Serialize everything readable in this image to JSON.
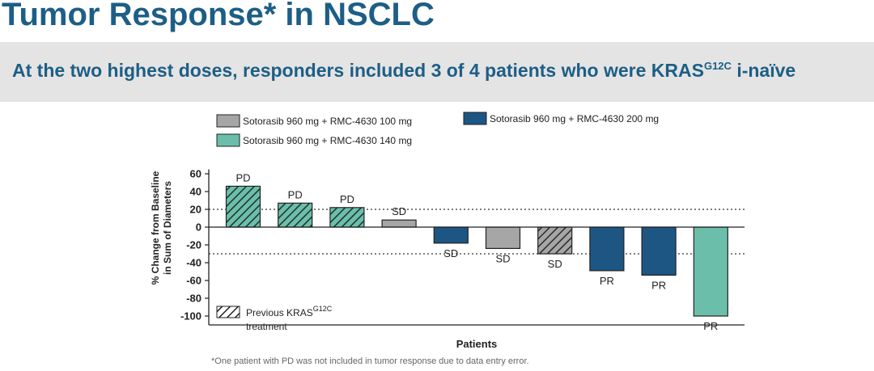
{
  "title": "Tumor Response* in NSCLC",
  "subtitle": {
    "text": "At the two highest doses, responders included 3 of 4 patients who were KRAS",
    "superscript": "G12C",
    "suffix": " i-naïve"
  },
  "footnote": "*One patient with PD was not included in tumor response due to data entry error.",
  "chart_data": {
    "type": "bar",
    "xlabel": "Patients",
    "ylabel": [
      "% Change from Baseline",
      "in Sum of Diameters"
    ],
    "ylim": [
      -110,
      65
    ],
    "yticks": [
      60,
      40,
      20,
      0,
      -20,
      -40,
      -60,
      -80,
      -100
    ],
    "reference_lines": [
      20,
      -30
    ],
    "grid": false,
    "legend": {
      "position": "top",
      "entries": [
        {
          "name": "Sotorasib 960 mg + RMC-4630 100 mg",
          "color": "#a6a6a6"
        },
        {
          "name": "Sotorasib 960 mg + RMC-4630 140 mg",
          "color": "#6bbfaa"
        },
        {
          "name": "Sotorasib 960 mg + RMC-4630 200 mg",
          "color": "#1d5683"
        }
      ]
    },
    "pattern_legend": {
      "text": "Previous KRAS",
      "superscript": "G12C",
      "text2": "treatment"
    },
    "bars": [
      {
        "patient": 1,
        "value": 46,
        "dose": "140 mg",
        "prior_kras": true,
        "label": "PD"
      },
      {
        "patient": 2,
        "value": 27,
        "dose": "140 mg",
        "prior_kras": true,
        "label": "PD"
      },
      {
        "patient": 3,
        "value": 22,
        "dose": "140 mg",
        "prior_kras": true,
        "label": "PD"
      },
      {
        "patient": 4,
        "value": 8,
        "dose": "100 mg",
        "prior_kras": false,
        "label": "SD"
      },
      {
        "patient": 5,
        "value": -18,
        "dose": "200 mg",
        "prior_kras": false,
        "label": "SD"
      },
      {
        "patient": 6,
        "value": -24,
        "dose": "100 mg",
        "prior_kras": false,
        "label": "SD"
      },
      {
        "patient": 7,
        "value": -30,
        "dose": "100 mg",
        "prior_kras": true,
        "label": "SD"
      },
      {
        "patient": 8,
        "value": -49,
        "dose": "200 mg",
        "prior_kras": false,
        "label": "PR"
      },
      {
        "patient": 9,
        "value": -54,
        "dose": "200 mg",
        "prior_kras": false,
        "label": "PR"
      },
      {
        "patient": 10,
        "value": -100,
        "dose": "140 mg",
        "prior_kras": false,
        "label": "PR"
      }
    ]
  }
}
